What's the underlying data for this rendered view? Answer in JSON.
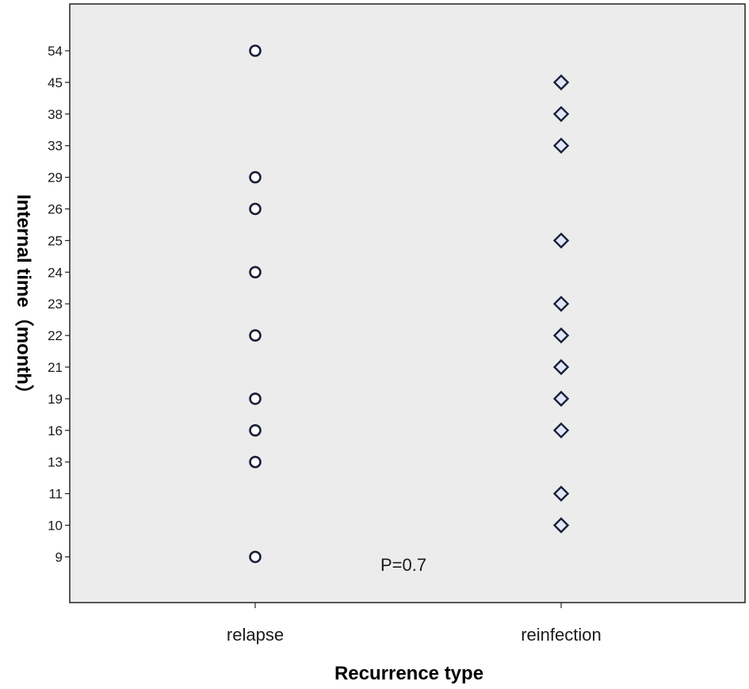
{
  "chart_data": {
    "type": "scatter",
    "title": "",
    "xlabel": "Recurrence type",
    "ylabel": "Internal time（month）",
    "categories": [
      "relapse",
      "reinfection"
    ],
    "y_ticks": [
      "54",
      "45",
      "38",
      "33",
      "29",
      "26",
      "25",
      "24",
      "23",
      "22",
      "21",
      "19",
      "16",
      "13",
      "11",
      "10",
      "9"
    ],
    "y_scale": "ordinal (evenly spaced tick labels)",
    "series": [
      {
        "category": "relapse",
        "marker": "circle",
        "values": [
          54,
          29,
          26,
          24,
          22,
          19,
          16,
          13,
          9
        ]
      },
      {
        "category": "reinfection",
        "marker": "diamond",
        "values": [
          45,
          38,
          33,
          25,
          23,
          22,
          21,
          19,
          16,
          11,
          10
        ]
      }
    ],
    "annotations": [
      {
        "text": "P=0.7"
      }
    ],
    "grid": false,
    "background": "#ececec",
    "marker_stroke": "#1a1f3a",
    "relapse_fill": "#ffffff",
    "reinfection_fill": "#dfe8f7"
  }
}
